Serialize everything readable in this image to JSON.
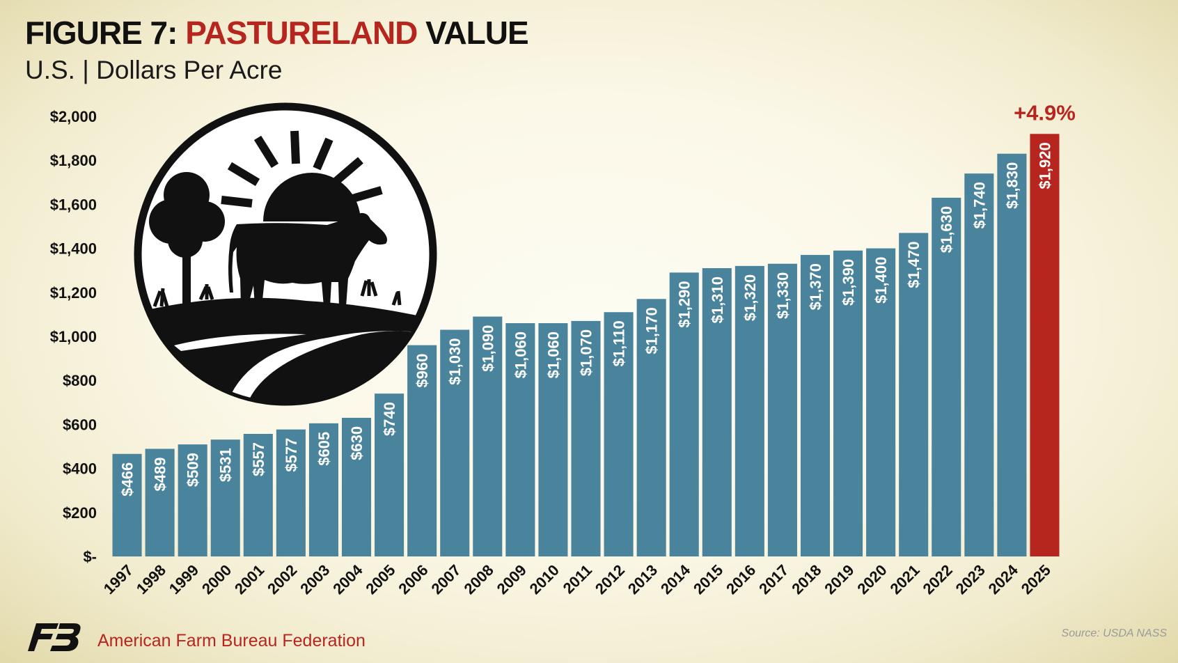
{
  "header": {
    "title_prefix": "FIGURE 7: ",
    "title_highlight": "PASTURELAND",
    "title_suffix": " VALUE",
    "subtitle": "U.S. | Dollars Per Acre"
  },
  "footer": {
    "organization": "American Farm Bureau Federation",
    "source": "Source: USDA NASS"
  },
  "icons": {
    "illustration": "cow-pasture-sunrise-icon",
    "logo": "farm-bureau-fb-logo"
  },
  "colors": {
    "bar": "#4a839c",
    "highlight_bar": "#b7261e",
    "accent": "#b7261e"
  },
  "chart_data": {
    "type": "bar",
    "title": "FIGURE 7: PASTURELAND VALUE",
    "subtitle": "U.S. | Dollars Per Acre",
    "ylim": [
      0,
      2000
    ],
    "yticks": [
      0,
      200,
      400,
      600,
      800,
      1000,
      1200,
      1400,
      1600,
      1800,
      2000
    ],
    "ytick_labels": [
      "$-",
      "$200",
      "$400",
      "$600",
      "$800",
      "$1,000",
      "$1,200",
      "$1,400",
      "$1,600",
      "$1,800",
      "$2,000"
    ],
    "categories": [
      "1997",
      "1998",
      "1999",
      "2000",
      "2001",
      "2002",
      "2003",
      "2004",
      "2005",
      "2006",
      "2007",
      "2008",
      "2009",
      "2010",
      "2011",
      "2012",
      "2013",
      "2014",
      "2015",
      "2016",
      "2017",
      "2018",
      "2019",
      "2020",
      "2021",
      "2022",
      "2023",
      "2024",
      "2025"
    ],
    "values": [
      466,
      489,
      509,
      531,
      557,
      577,
      605,
      630,
      740,
      960,
      1030,
      1090,
      1060,
      1060,
      1070,
      1110,
      1170,
      1290,
      1310,
      1320,
      1330,
      1370,
      1390,
      1400,
      1470,
      1630,
      1740,
      1830,
      1920
    ],
    "data_labels": [
      "$466",
      "$489",
      "$509",
      "$531",
      "$557",
      "$577",
      "$605",
      "$630",
      "$740",
      "$960",
      "$1,030",
      "$1,090",
      "$1,060",
      "$1,060",
      "$1,070",
      "$1,110",
      "$1,170",
      "$1,290",
      "$1,310",
      "$1,320",
      "$1,330",
      "$1,370",
      "$1,390",
      "$1,400",
      "$1,470",
      "$1,630",
      "$1,740",
      "$1,830",
      "$1,920"
    ],
    "highlight_category": "2025",
    "annotations": [
      {
        "category": "2025",
        "text": "+4.9%"
      }
    ],
    "grid": false,
    "legend": "none"
  }
}
